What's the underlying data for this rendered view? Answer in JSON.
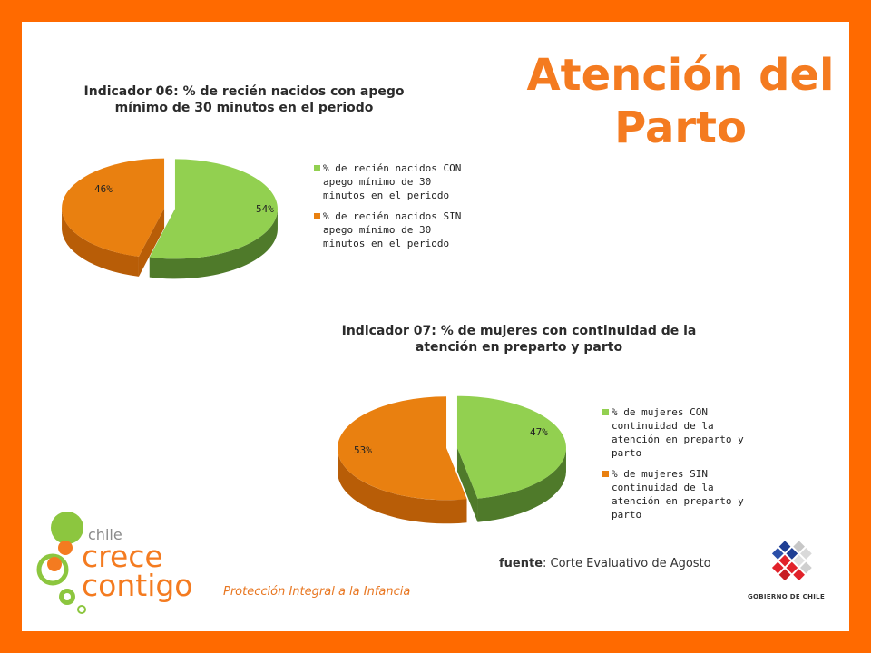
{
  "slide_title": "Atención del Parto",
  "colors": {
    "frame": "#ff6a00",
    "green": "#92d050",
    "orange": "#e98010",
    "title": "#f47b20"
  },
  "chart_data": [
    {
      "type": "pie",
      "title": "Indicador 06: % de recién nacidos con apego mínimo de 30 minutos en el periodo",
      "labels": [
        "% de recién nacidos CON apego mínimo de 30 minutos en el periodo",
        "% de recién nacidos SIN apego mínimo de 30 minutos en el periodo"
      ],
      "values": [
        54,
        46
      ],
      "value_labels": [
        "54%",
        "46%"
      ],
      "colors": [
        "#92d050",
        "#e98010"
      ],
      "legend": "right"
    },
    {
      "type": "pie",
      "title": "Indicador 07: % de mujeres con continuidad de la atención en preparto y parto",
      "labels": [
        "% de mujeres CON continuidad de la atención en preparto y parto",
        "% de mujeres SIN continuidad de la atención en preparto y parto"
      ],
      "values": [
        47,
        53
      ],
      "value_labels": [
        "47%",
        "53%"
      ],
      "colors": [
        "#92d050",
        "#e98010"
      ],
      "legend": "right"
    }
  ],
  "source": {
    "label": "fuente",
    "text": "Corte Evaluativo de Agosto"
  },
  "logo": {
    "line1": "chile",
    "line2": "crece",
    "line3": "contigo",
    "icon": "circles-logo-icon"
  },
  "tagline": "Protección Integral a la Infancia",
  "gov_logo": {
    "text": "GOBIERNO DE CHILE",
    "icon": "chile-government-emblem-icon"
  }
}
